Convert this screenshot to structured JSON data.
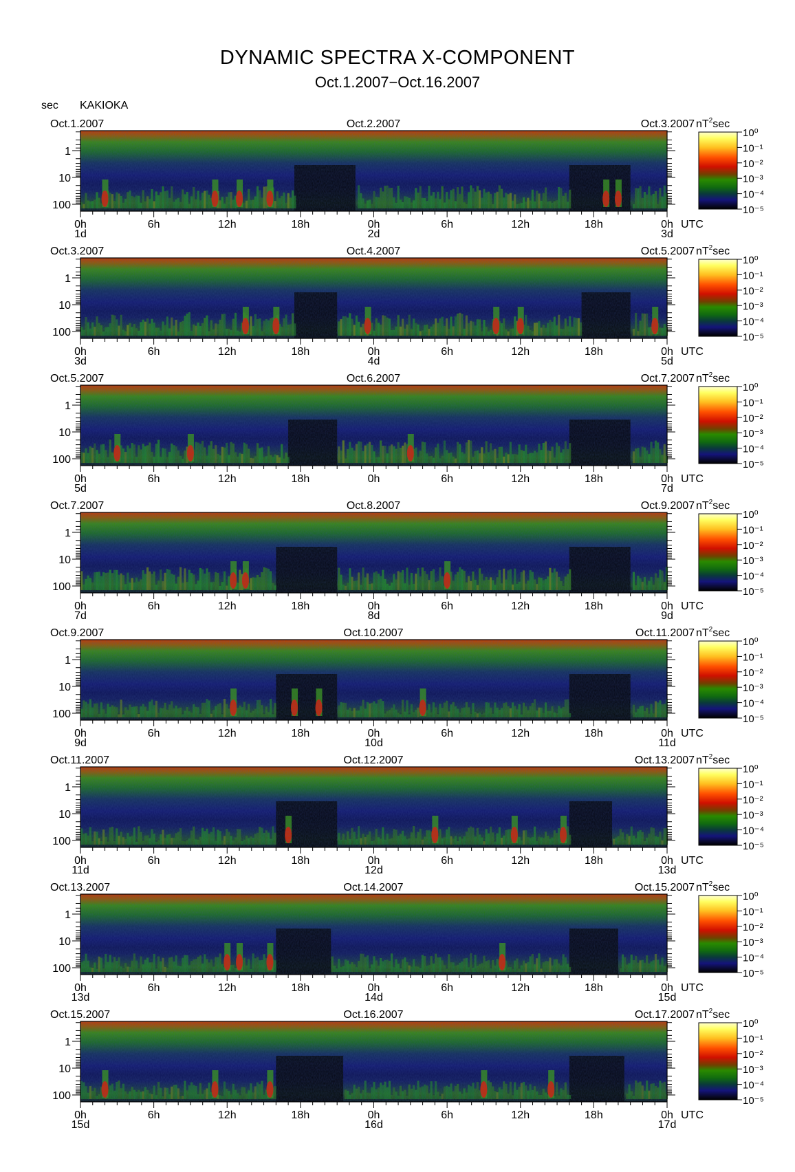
{
  "title": "DYNAMIC SPECTRA X-COMPONENT",
  "subtitle": "Oct.1.2007−Oct.16.2007",
  "y_unit": "sec",
  "station": "KAKIOKA",
  "colorbar": {
    "unit_label": "nT²sec",
    "unit_prefix": "nT",
    "unit_sup": "2",
    "unit_suffix": "sec",
    "ticks": [
      "10⁰",
      "10⁻¹",
      "10⁻²",
      "10⁻³",
      "10⁻⁴",
      "10⁻⁵"
    ],
    "colors": [
      "#ffff60",
      "#ffc020",
      "#ff8000",
      "#ff2a00",
      "#b40000",
      "#2a8a00",
      "#106a10",
      "#0a3040",
      "#14147a",
      "#000000"
    ]
  },
  "chart_data": {
    "type": "heatmap",
    "description_axis": "period",
    "x_ticks": [
      "0h",
      "6h",
      "12h",
      "18h",
      "0h",
      "6h",
      "12h",
      "18h",
      "0h"
    ],
    "x_unit": "UTC",
    "y_ticks": [
      "1",
      "10",
      "100"
    ],
    "y_axis": "period (sec)",
    "y_scale": "log",
    "y_reversed": true,
    "color_scale": "log",
    "color_range": [
      1e-05,
      1
    ],
    "panels": [
      {
        "left_date": "Oct.1.2007",
        "mid_date": "Oct.2.2007",
        "right_date": "Oct.3.2007",
        "day_labels": [
          "1d",
          "2d",
          "3d"
        ],
        "quiet_intervals_hours": [
          [
            17.5,
            22.5
          ],
          [
            40,
            45
          ]
        ],
        "enhanced_hours": [
          2,
          11,
          13,
          15.5,
          43,
          44
        ]
      },
      {
        "left_date": "Oct.3.2007",
        "mid_date": "Oct.4.2007",
        "right_date": "Oct.5.2007",
        "day_labels": [
          "3d",
          "4d",
          "5d"
        ],
        "quiet_intervals_hours": [
          [
            17.5,
            21
          ],
          [
            41,
            45
          ]
        ],
        "enhanced_hours": [
          13.5,
          16,
          23.5,
          34,
          36,
          47
        ]
      },
      {
        "left_date": "Oct.5.2007",
        "mid_date": "Oct.6.2007",
        "right_date": "Oct.7.2007",
        "day_labels": [
          "5d",
          "7d"
        ],
        "quiet_intervals_hours": [
          [
            17,
            21
          ],
          [
            40,
            45
          ]
        ],
        "enhanced_hours": [
          3,
          9,
          27
        ]
      },
      {
        "left_date": "Oct.7.2007",
        "mid_date": "Oct.8.2007",
        "right_date": "Oct.9.2007",
        "day_labels": [
          "7d",
          "8d",
          "9d"
        ],
        "quiet_intervals_hours": [
          [
            16,
            21
          ],
          [
            40,
            45
          ]
        ],
        "enhanced_hours": [
          12.5,
          13.5,
          30
        ]
      },
      {
        "left_date": "Oct.9.2007",
        "mid_date": "Oct.10.2007",
        "right_date": "Oct.11.2007",
        "day_labels": [
          "9d",
          "10d",
          "11d"
        ],
        "quiet_intervals_hours": [
          [
            16,
            21
          ],
          [
            40,
            45
          ]
        ],
        "enhanced_hours": [
          12.5,
          17.5,
          19.5,
          28
        ]
      },
      {
        "left_date": "Oct.11.2007",
        "mid_date": "Oct.12.2007",
        "right_date": "Oct.13.2007",
        "day_labels": [
          "11d",
          "12d",
          "13d"
        ],
        "quiet_intervals_hours": [
          [
            16,
            21
          ],
          [
            40,
            43.5
          ]
        ],
        "enhanced_hours": [
          17,
          29,
          35.5,
          39.5
        ]
      },
      {
        "left_date": "Oct.13.2007",
        "mid_date": "Oct.14.2007",
        "right_date": "Oct.15.2007",
        "day_labels": [
          "13d",
          "14d",
          "15d"
        ],
        "quiet_intervals_hours": [
          [
            16,
            20.5
          ],
          [
            40,
            44
          ]
        ],
        "enhanced_hours": [
          12,
          13,
          15.5,
          34.5
        ]
      },
      {
        "left_date": "Oct.15.2007",
        "mid_date": "Oct.16.2007",
        "right_date": "Oct.17.2007",
        "day_labels": [
          "15d",
          "16d",
          "17d"
        ],
        "quiet_intervals_hours": [
          [
            16,
            21.5
          ],
          [
            40,
            44.5
          ]
        ],
        "enhanced_hours": [
          2,
          11,
          15.5,
          33,
          38.5
        ]
      }
    ]
  }
}
